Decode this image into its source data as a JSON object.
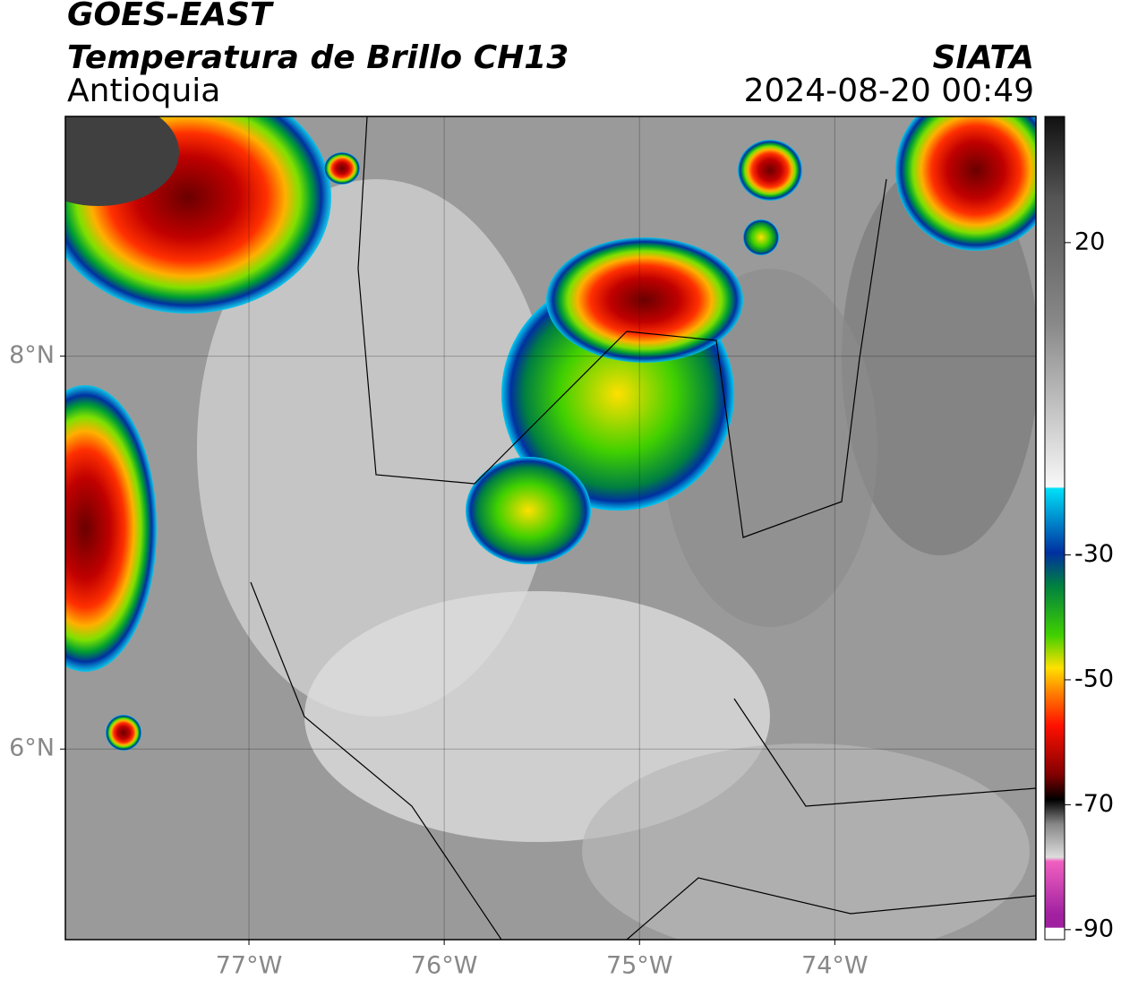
{
  "header": {
    "title": "GOES-EAST",
    "subtitle": "Temperatura de Brillo CH13",
    "region": "Antioquia",
    "source": "SIATA",
    "datetime": "2024-08-20 00:49"
  },
  "map": {
    "xlim": [
      -77.94,
      -72.97
    ],
    "ylim": [
      5.03,
      9.22
    ],
    "grid": true,
    "lon_ticks": [
      {
        "value": -77,
        "label": "77°W"
      },
      {
        "value": -76,
        "label": "76°W"
      },
      {
        "value": -75,
        "label": "75°W"
      },
      {
        "value": -74,
        "label": "74°W"
      }
    ],
    "lat_ticks": [
      {
        "value": 6,
        "label": "6°N"
      },
      {
        "value": 8,
        "label": "8°N"
      }
    ]
  },
  "colorbar": {
    "lim": [
      -91.6,
      40.2
    ],
    "ticks": [
      20,
      -30,
      -50,
      -70,
      -90
    ]
  }
}
